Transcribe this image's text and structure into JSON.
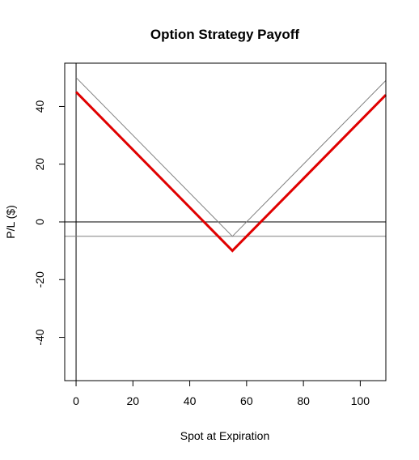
{
  "chart_data": {
    "type": "line",
    "title": "Option Strategy Payoff",
    "xlabel": "Spot at Expiration",
    "ylabel": "P/L ($)",
    "xlim": [
      -4,
      109
    ],
    "ylim": [
      -55,
      55
    ],
    "xticks": [
      0,
      20,
      40,
      60,
      80,
      100
    ],
    "yticks": [
      -40,
      -20,
      0,
      20,
      40
    ],
    "grid": false,
    "legend": "none",
    "reference_lines": [
      {
        "orientation": "horizontal",
        "value": 0,
        "color": "#000000"
      },
      {
        "orientation": "vertical",
        "value": 0,
        "color": "#000000"
      }
    ],
    "series": [
      {
        "x": [
          0,
          55,
          109
        ],
        "y": [
          50,
          -5,
          49
        ],
        "color": "#808080",
        "width": 1
      },
      {
        "x": [
          -4,
          109
        ],
        "y": [
          -5,
          -5
        ],
        "color": "#808080",
        "width": 1
      },
      {
        "x": [
          0,
          55,
          109
        ],
        "y": [
          45,
          -10,
          44
        ],
        "color": "#e00000",
        "width": 3
      }
    ]
  }
}
